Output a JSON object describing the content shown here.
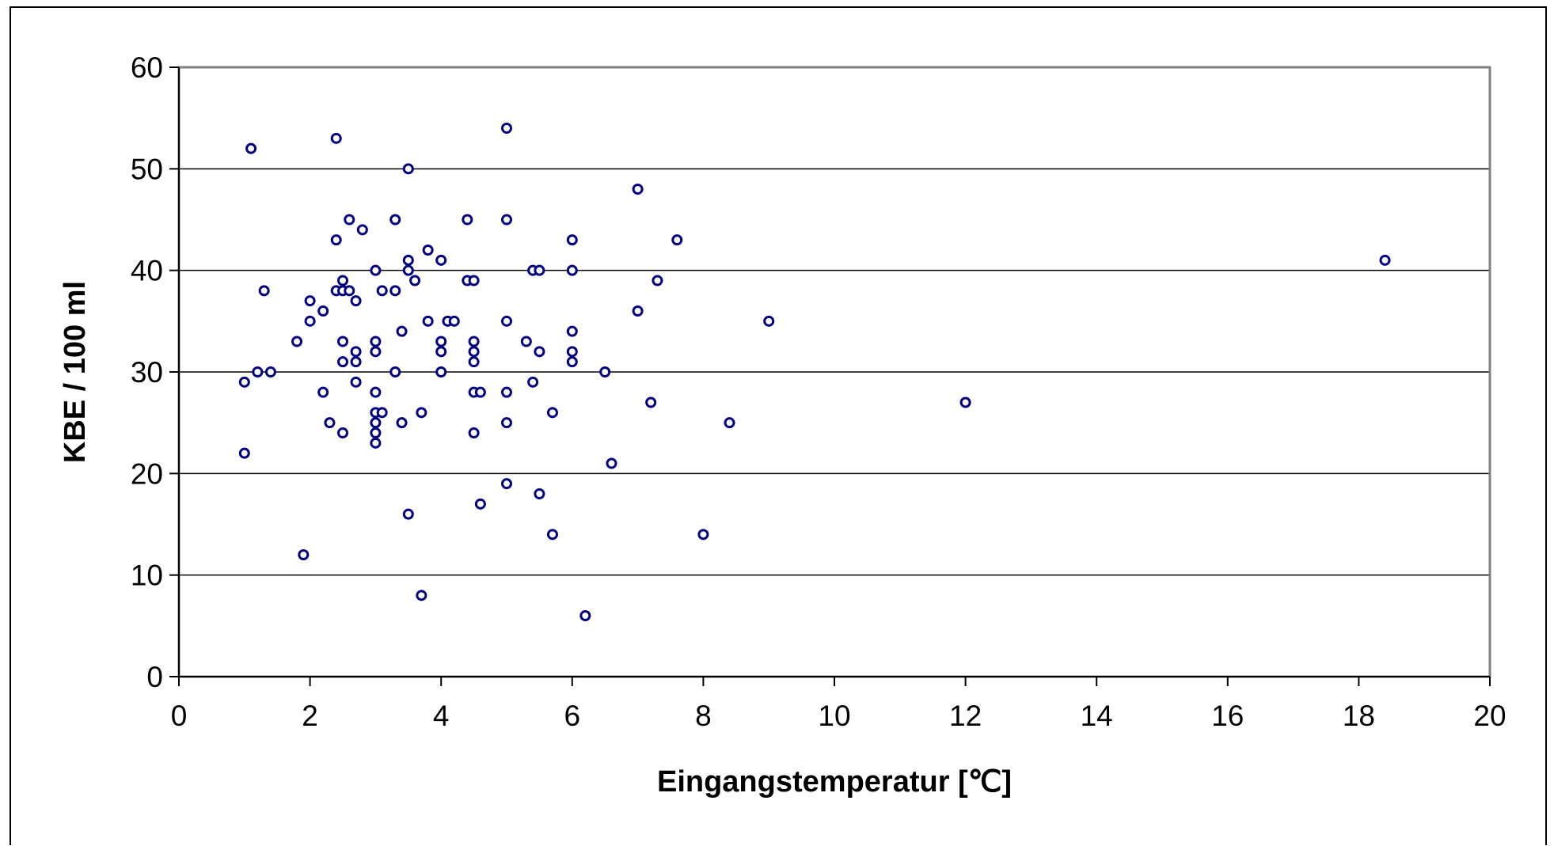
{
  "chart_data": {
    "type": "scatter",
    "title": "",
    "xlabel": "Eingangstemperatur [℃]",
    "ylabel": "KBE / 100 ml",
    "xlim": [
      0,
      20
    ],
    "ylim": [
      0,
      60
    ],
    "x_ticks": [
      0,
      2,
      4,
      6,
      8,
      10,
      12,
      14,
      16,
      18,
      20
    ],
    "y_ticks": [
      0,
      10,
      20,
      30,
      40,
      50,
      60
    ],
    "grid": "horizontal",
    "legend": "none",
    "marker": "open-circle",
    "colors": {
      "marker": "#000080",
      "grid": "#000000",
      "plot_border": "#808080",
      "axis": "#000000"
    },
    "points": [
      [
        1.0,
        22
      ],
      [
        1.0,
        29
      ],
      [
        1.1,
        52
      ],
      [
        1.2,
        30
      ],
      [
        1.3,
        38
      ],
      [
        1.4,
        30
      ],
      [
        1.8,
        33
      ],
      [
        1.9,
        12
      ],
      [
        2.0,
        35
      ],
      [
        2.0,
        37
      ],
      [
        2.2,
        28
      ],
      [
        2.2,
        36
      ],
      [
        2.3,
        25
      ],
      [
        2.4,
        38
      ],
      [
        2.4,
        43
      ],
      [
        2.4,
        53
      ],
      [
        2.5,
        24
      ],
      [
        2.5,
        31
      ],
      [
        2.5,
        33
      ],
      [
        2.5,
        38
      ],
      [
        2.5,
        39
      ],
      [
        2.6,
        38
      ],
      [
        2.6,
        45
      ],
      [
        2.7,
        29
      ],
      [
        2.7,
        31
      ],
      [
        2.7,
        32
      ],
      [
        2.7,
        37
      ],
      [
        2.8,
        44
      ],
      [
        3.0,
        23
      ],
      [
        3.0,
        24
      ],
      [
        3.0,
        25
      ],
      [
        3.0,
        26
      ],
      [
        3.0,
        28
      ],
      [
        3.0,
        32
      ],
      [
        3.0,
        33
      ],
      [
        3.0,
        40
      ],
      [
        3.1,
        26
      ],
      [
        3.1,
        38
      ],
      [
        3.3,
        30
      ],
      [
        3.3,
        38
      ],
      [
        3.3,
        45
      ],
      [
        3.4,
        25
      ],
      [
        3.4,
        34
      ],
      [
        3.5,
        16
      ],
      [
        3.5,
        40
      ],
      [
        3.5,
        41
      ],
      [
        3.5,
        50
      ],
      [
        3.6,
        39
      ],
      [
        3.7,
        8
      ],
      [
        3.7,
        26
      ],
      [
        3.8,
        35
      ],
      [
        3.8,
        42
      ],
      [
        4.0,
        30
      ],
      [
        4.0,
        32
      ],
      [
        4.0,
        33
      ],
      [
        4.0,
        41
      ],
      [
        4.1,
        35
      ],
      [
        4.2,
        35
      ],
      [
        4.4,
        39
      ],
      [
        4.4,
        45
      ],
      [
        4.5,
        24
      ],
      [
        4.5,
        28
      ],
      [
        4.5,
        31
      ],
      [
        4.5,
        32
      ],
      [
        4.5,
        33
      ],
      [
        4.5,
        39
      ],
      [
        4.6,
        17
      ],
      [
        4.6,
        28
      ],
      [
        5.0,
        19
      ],
      [
        5.0,
        25
      ],
      [
        5.0,
        28
      ],
      [
        5.0,
        35
      ],
      [
        5.0,
        45
      ],
      [
        5.0,
        54
      ],
      [
        5.3,
        33
      ],
      [
        5.4,
        29
      ],
      [
        5.4,
        40
      ],
      [
        5.5,
        18
      ],
      [
        5.5,
        32
      ],
      [
        5.5,
        40
      ],
      [
        5.7,
        14
      ],
      [
        5.7,
        26
      ],
      [
        6.0,
        31
      ],
      [
        6.0,
        32
      ],
      [
        6.0,
        34
      ],
      [
        6.0,
        40
      ],
      [
        6.0,
        43
      ],
      [
        6.2,
        6
      ],
      [
        6.5,
        30
      ],
      [
        6.6,
        21
      ],
      [
        7.0,
        36
      ],
      [
        7.0,
        48
      ],
      [
        7.2,
        27
      ],
      [
        7.3,
        39
      ],
      [
        7.6,
        43
      ],
      [
        8.0,
        14
      ],
      [
        8.4,
        25
      ],
      [
        9.0,
        35
      ],
      [
        12.0,
        27
      ],
      [
        18.4,
        41
      ]
    ]
  }
}
